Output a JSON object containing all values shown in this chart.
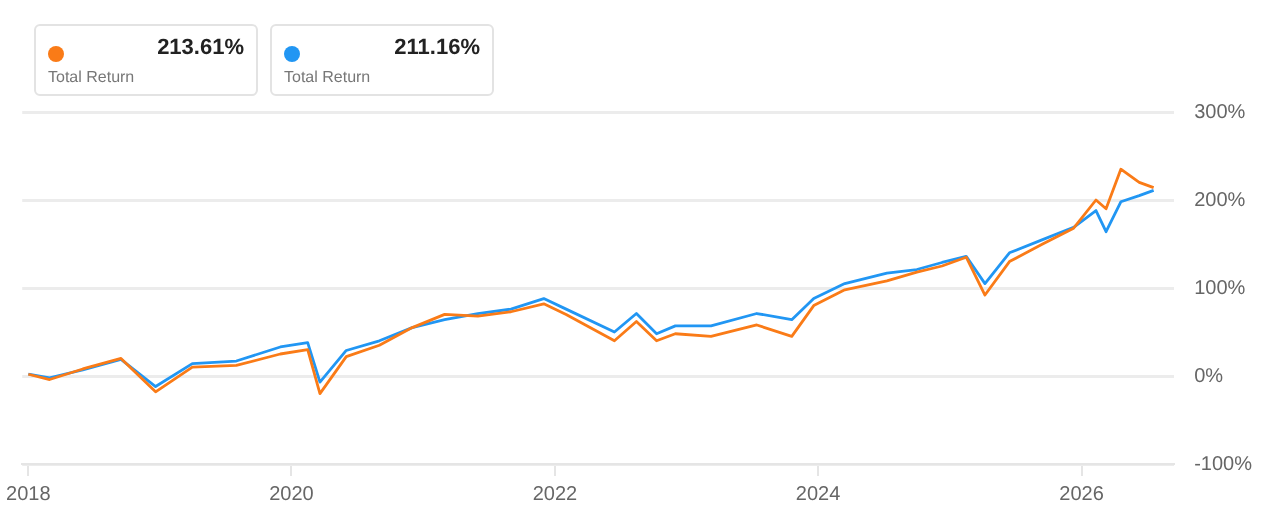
{
  "chart_data": {
    "type": "line",
    "x": [
      "2018-01-01",
      "2018-03-01",
      "2018-06-01",
      "2018-09-15",
      "2018-12-20",
      "2019-04-01",
      "2019-08-01",
      "2019-12-01",
      "2020-02-15",
      "2020-03-20",
      "2020-06-01",
      "2020-09-01",
      "2020-12-01",
      "2021-03-01",
      "2021-06-01",
      "2021-09-01",
      "2021-12-01",
      "2022-02-01",
      "2022-06-15",
      "2022-08-15",
      "2022-10-10",
      "2022-12-01",
      "2023-03-10",
      "2023-07-15",
      "2023-10-20",
      "2023-12-20",
      "2024-03-15",
      "2024-07-10",
      "2024-10-01",
      "2024-12-10",
      "2025-02-15",
      "2025-04-08",
      "2025-06-15",
      "2025-09-15",
      "2025-12-10",
      "2026-02-10",
      "2026-03-10",
      "2026-04-20",
      "2026-06-10",
      "2026-07-20"
    ],
    "series": [
      {
        "color": "#fa7b17",
        "values": [
          2,
          -4,
          8,
          20,
          -18,
          10,
          12,
          25,
          30,
          -20,
          22,
          35,
          55,
          70,
          68,
          73,
          82,
          70,
          40,
          62,
          40,
          48,
          45,
          58,
          45,
          80,
          98,
          108,
          118,
          125,
          135,
          92,
          130,
          150,
          168,
          200,
          190,
          235,
          220,
          214
        ]
      },
      {
        "color": "#2196f3",
        "values": [
          2,
          -2,
          7,
          19,
          -12,
          14,
          17,
          33,
          38,
          -7,
          29,
          40,
          55,
          64,
          71,
          76,
          88,
          76,
          50,
          71,
          48,
          57,
          57,
          71,
          64,
          88,
          105,
          117,
          121,
          129,
          136,
          105,
          140,
          155,
          169,
          188,
          164,
          198,
          205,
          211
        ]
      }
    ],
    "annotations": [
      "213.61%",
      "Total Return",
      "211.16%",
      "Total Return"
    ],
    "xlim": [
      "2017-12-15",
      "2026-09-15"
    ],
    "xticks": [
      {
        "value": "2018-01-01",
        "label": "2018"
      },
      {
        "value": "2020-01-01",
        "label": "2020"
      },
      {
        "value": "2022-01-01",
        "label": "2022"
      },
      {
        "value": "2024-01-01",
        "label": "2024"
      },
      {
        "value": "2026-01-01",
        "label": "2026"
      }
    ],
    "ylim": [
      -100,
      300
    ],
    "yticks": [
      {
        "value": -100,
        "label": "-100%"
      },
      {
        "value": 0,
        "label": "0%"
      },
      {
        "value": 100,
        "label": "100%"
      },
      {
        "value": 200,
        "label": "200%"
      },
      {
        "value": 300,
        "label": "300%"
      }
    ],
    "grid": "y",
    "marker": "none",
    "line_style": "solid"
  }
}
